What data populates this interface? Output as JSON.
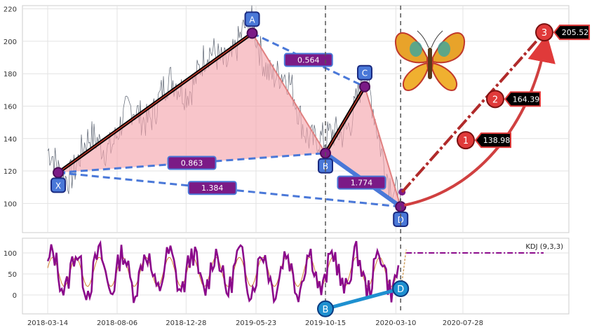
{
  "chart_data": [
    {
      "type": "line",
      "panel": "price",
      "ylim": [
        82,
        222
      ],
      "yticks": [
        100,
        120,
        140,
        160,
        180,
        200,
        220
      ],
      "grid": true,
      "harmonic_pattern": {
        "points": [
          {
            "label": "X",
            "date": "2018-04-05",
            "value": 119
          },
          {
            "label": "A",
            "date": "2019-05-15",
            "value": 205
          },
          {
            "label": "B",
            "date": "2019-10-15",
            "value": 131
          },
          {
            "label": "C",
            "date": "2020-01-05",
            "value": 172
          },
          {
            "label": "D",
            "date": "2020-03-20",
            "value": 98
          }
        ],
        "ratios": [
          {
            "label": "0.564",
            "between": [
              "A",
              "C"
            ]
          },
          {
            "label": "0.863",
            "between": [
              "X",
              "B"
            ]
          },
          {
            "label": "1.774",
            "between": [
              "B",
              "D"
            ]
          },
          {
            "label": "1.384",
            "between": [
              "X",
              "D"
            ]
          }
        ]
      },
      "targets": [
        {
          "number": "1",
          "label": "138.98",
          "value": 138.98
        },
        {
          "number": "2",
          "label": "164.39",
          "value": 164.39
        },
        {
          "number": "3",
          "label": "205.52",
          "value": 205.52
        }
      ],
      "vertical_markers": [
        "2019-10-15",
        "2020-03-20"
      ]
    },
    {
      "type": "line",
      "panel": "indicator",
      "legend": "KDJ (9,3,3)",
      "ylim": [
        -45,
        135
      ],
      "yticks": [
        0,
        50,
        100
      ],
      "grid": true,
      "divergence": [
        {
          "label": "B",
          "date": "2019-10-15",
          "value": -33
        },
        {
          "label": "D",
          "date": "2020-03-20",
          "value": 15
        }
      ],
      "projection_value": 100
    }
  ],
  "x_axis": {
    "tick_labels": [
      "2018-03-14",
      "2018-08-06",
      "2018-12-28",
      "2019-05-23",
      "2019-10-15",
      "2020-03-10",
      "2020-07-28"
    ]
  },
  "colors": {
    "pattern_fill": "#f4a6ad",
    "dashed_blue": "#4a78d8",
    "ratio_box": "#7b1a86",
    "target_red": "#e03a3a",
    "kdj_purple": "#8b0a8b",
    "divergence_blue": "#1e90d0"
  },
  "decorations": [
    "butterfly-icon"
  ]
}
